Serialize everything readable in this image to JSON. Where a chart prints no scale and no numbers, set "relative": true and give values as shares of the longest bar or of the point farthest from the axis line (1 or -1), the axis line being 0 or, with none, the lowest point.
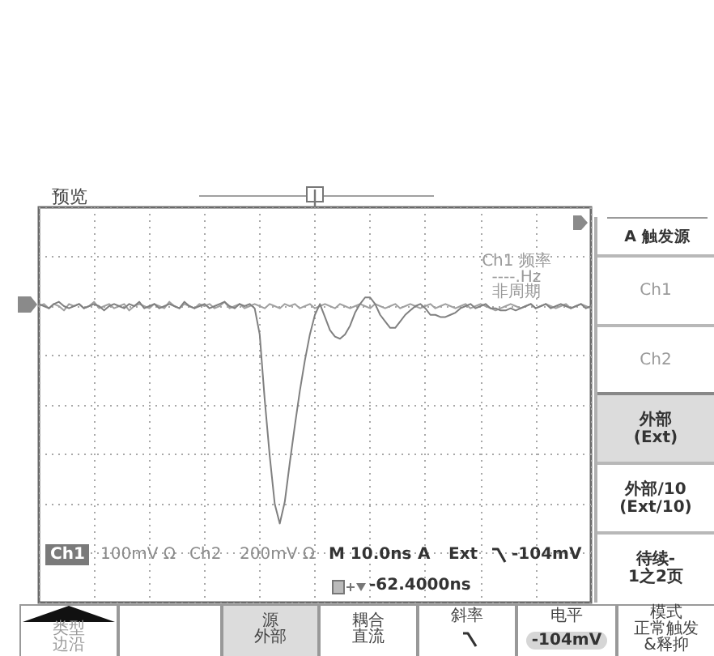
{
  "chart_data": {
    "type": "line",
    "relative": true,
    "grid": true,
    "categories": [
      null,
      null,
      null,
      null,
      null,
      null,
      null,
      null,
      null,
      null,
      null,
      null,
      null,
      null,
      null,
      null,
      null,
      null,
      null,
      null,
      null,
      null,
      null,
      null,
      null,
      null,
      null,
      null,
      null,
      null,
      null,
      null,
      null,
      null,
      null,
      null,
      null,
      null,
      null,
      null,
      null,
      null,
      null,
      null,
      null,
      null,
      null,
      null,
      null,
      null,
      null,
      null,
      null,
      null,
      null,
      null,
      null,
      null,
      null,
      null,
      null,
      null,
      null,
      null,
      null,
      null,
      null,
      null,
      null,
      null,
      null,
      null,
      null,
      null,
      null,
      null,
      null,
      null,
      null,
      null,
      null,
      null,
      null,
      null,
      null,
      null,
      null,
      null,
      null,
      null,
      null,
      null,
      null,
      null,
      null,
      null,
      null,
      null,
      null,
      null,
      null,
      null,
      null,
      null,
      null,
      null,
      null,
      null,
      null,
      null,
      null
    ],
    "series": [
      {
        "color": "#a0a0a0",
        "values": [
          0,
          0.01,
          -0.01,
          0.01,
          0,
          -0.02,
          0.01,
          0,
          0.01,
          -0.01,
          0,
          0.02,
          -0.01,
          0,
          0.01,
          -0.01,
          0,
          0.01,
          -0.02,
          0,
          0.01,
          0,
          -0.01,
          0.01,
          0,
          -0.01,
          0.02,
          0,
          -0.01,
          0.01,
          0,
          -0.01,
          0.01,
          0,
          0.01,
          -0.01,
          0,
          0.02,
          -0.01,
          0,
          0.01,
          -0.01,
          0,
          0.01,
          0,
          -0.01,
          0.01,
          0,
          -0.01,
          0.01,
          0,
          0.01,
          -0.01,
          0,
          0.01,
          -0.01,
          0,
          0.01,
          0,
          -0.01,
          0.01,
          0,
          -0.01,
          0,
          0.01,
          0,
          -0.01,
          0.01,
          0,
          -0.01,
          0,
          0.01,
          -0.01,
          0,
          0.01,
          0,
          -0.01,
          0,
          0.01,
          -0.01,
          0,
          0.01,
          0,
          -0.01,
          0,
          0.01,
          -0.01,
          0,
          0.01,
          0,
          -0.01,
          -0.02,
          -0.01,
          0,
          0.01,
          0,
          -0.01,
          0,
          0.01,
          -0.01,
          0,
          0.01,
          0,
          -0.01,
          0,
          0.01,
          -0.01,
          0,
          0.01,
          0,
          -0.01
        ]
      },
      {
        "color": "#808080",
        "values": [
          0.01,
          0,
          -0.01,
          0.01,
          0.02,
          0,
          -0.01,
          0,
          0.01,
          -0.01,
          0,
          0.01,
          0,
          -0.02,
          0,
          0.01,
          0,
          -0.01,
          0.01,
          0,
          0.02,
          -0.01,
          0,
          0.01,
          -0.01,
          0,
          0.01,
          0,
          -0.01,
          0.02,
          0,
          -0.01,
          0,
          0.01,
          -0.01,
          0,
          0.01,
          0.02,
          0,
          -0.01,
          0.01,
          0,
          0.01,
          -0.01,
          -0.13,
          -0.43,
          -0.69,
          -0.91,
          -1,
          -0.9,
          -0.72,
          -0.55,
          -0.39,
          -0.25,
          -0.13,
          -0.04,
          0.01,
          -0.05,
          -0.11,
          -0.14,
          -0.15,
          -0.13,
          -0.09,
          -0.03,
          0.01,
          0.04,
          0.04,
          0.01,
          -0.04,
          -0.07,
          -0.1,
          -0.1,
          -0.07,
          -0.04,
          -0.02,
          0,
          0.01,
          -0.01,
          -0.04,
          -0.04,
          -0.05,
          -0.05,
          -0.04,
          -0.03,
          -0.01,
          0,
          0.01,
          -0.01,
          0,
          0.01,
          -0.01,
          -0.01,
          -0.02,
          -0.02,
          -0.01,
          -0.02,
          -0.01,
          0,
          0.01,
          -0.01,
          0,
          0.01,
          -0.01,
          0,
          0.01,
          0,
          -0.01,
          0,
          0.01,
          -0.01,
          0
        ]
      }
    ],
    "annotations": [
      "预览",
      "Ch1 频率",
      "----.Hz",
      "非周期",
      "Ch1",
      "100mV Ω",
      "Ch2",
      "200mV Ω",
      "M 10.0ns",
      "A",
      "Ext",
      "-104mV",
      "-62.4000ns",
      "A 触发源",
      "Ch1",
      "Ch2",
      "外部\n(Ext)",
      "外部/10\n(Ext/10)",
      "待续-\n1之2页",
      "类型",
      "边沿",
      "源",
      "外部",
      "耦合",
      "直流",
      "斜率",
      "电平",
      "-104mV",
      "模式",
      "正常触发\n&释抑"
    ]
  }
}
